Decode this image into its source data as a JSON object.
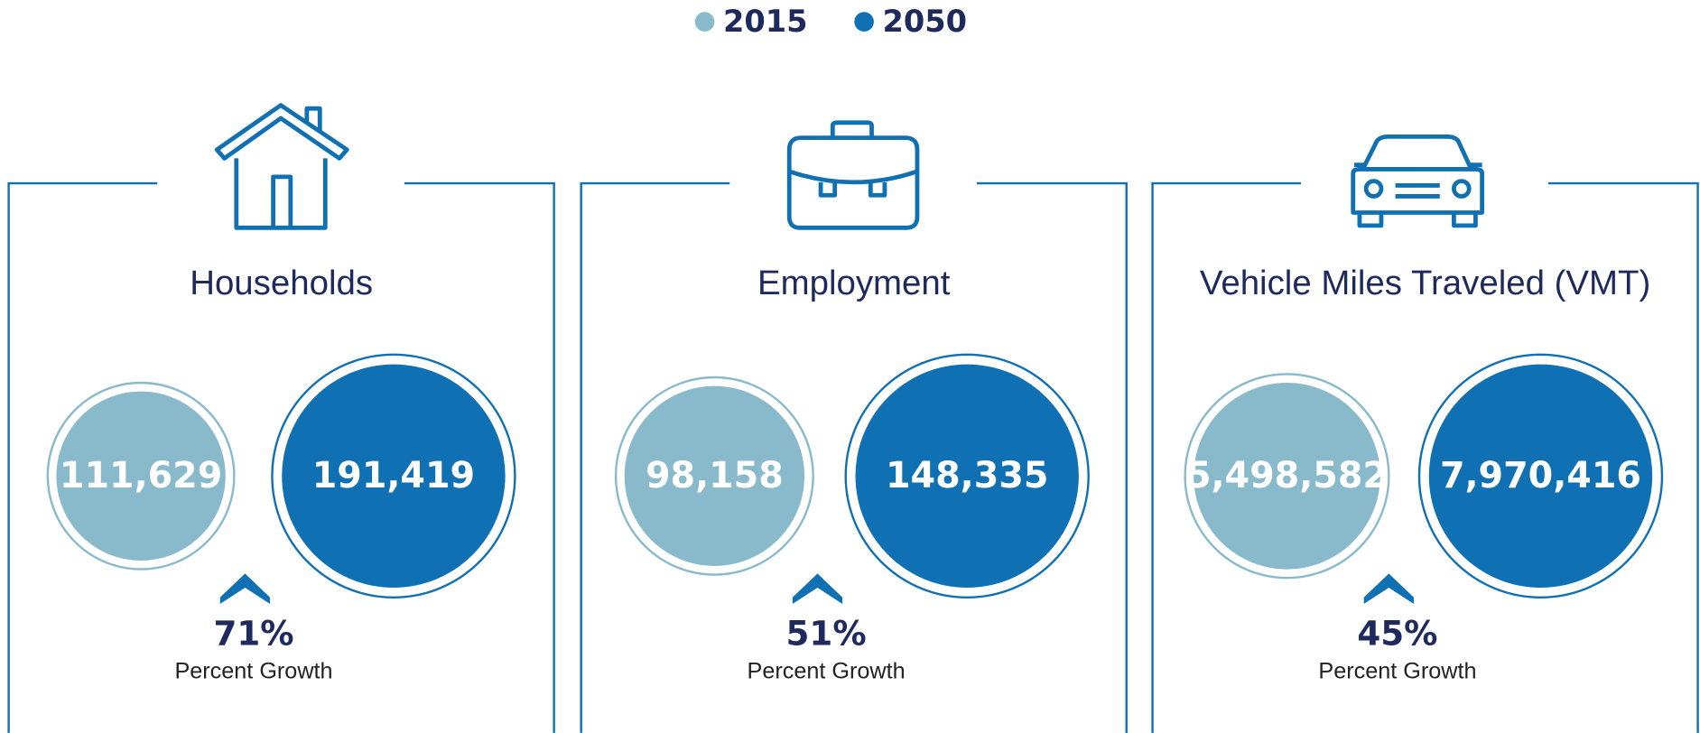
{
  "legend": [
    {
      "label": "2015",
      "color": "#88bacc"
    },
    {
      "label": "2050",
      "color": "#0f70b3"
    }
  ],
  "panels": [
    {
      "title": "Households",
      "value_2015": "111,629",
      "value_2050": "191,419",
      "growth": "71%",
      "growth_label": "Percent Growth"
    },
    {
      "title": "Employment",
      "value_2015": "98,158",
      "value_2050": "148,335",
      "growth": "51%",
      "growth_label": "Percent Growth"
    },
    {
      "title": "Vehicle Miles Traveled (VMT)",
      "value_2015": "5,498,582",
      "value_2050": "7,970,416",
      "growth": "45%",
      "growth_label": "Percent Growth"
    }
  ]
}
